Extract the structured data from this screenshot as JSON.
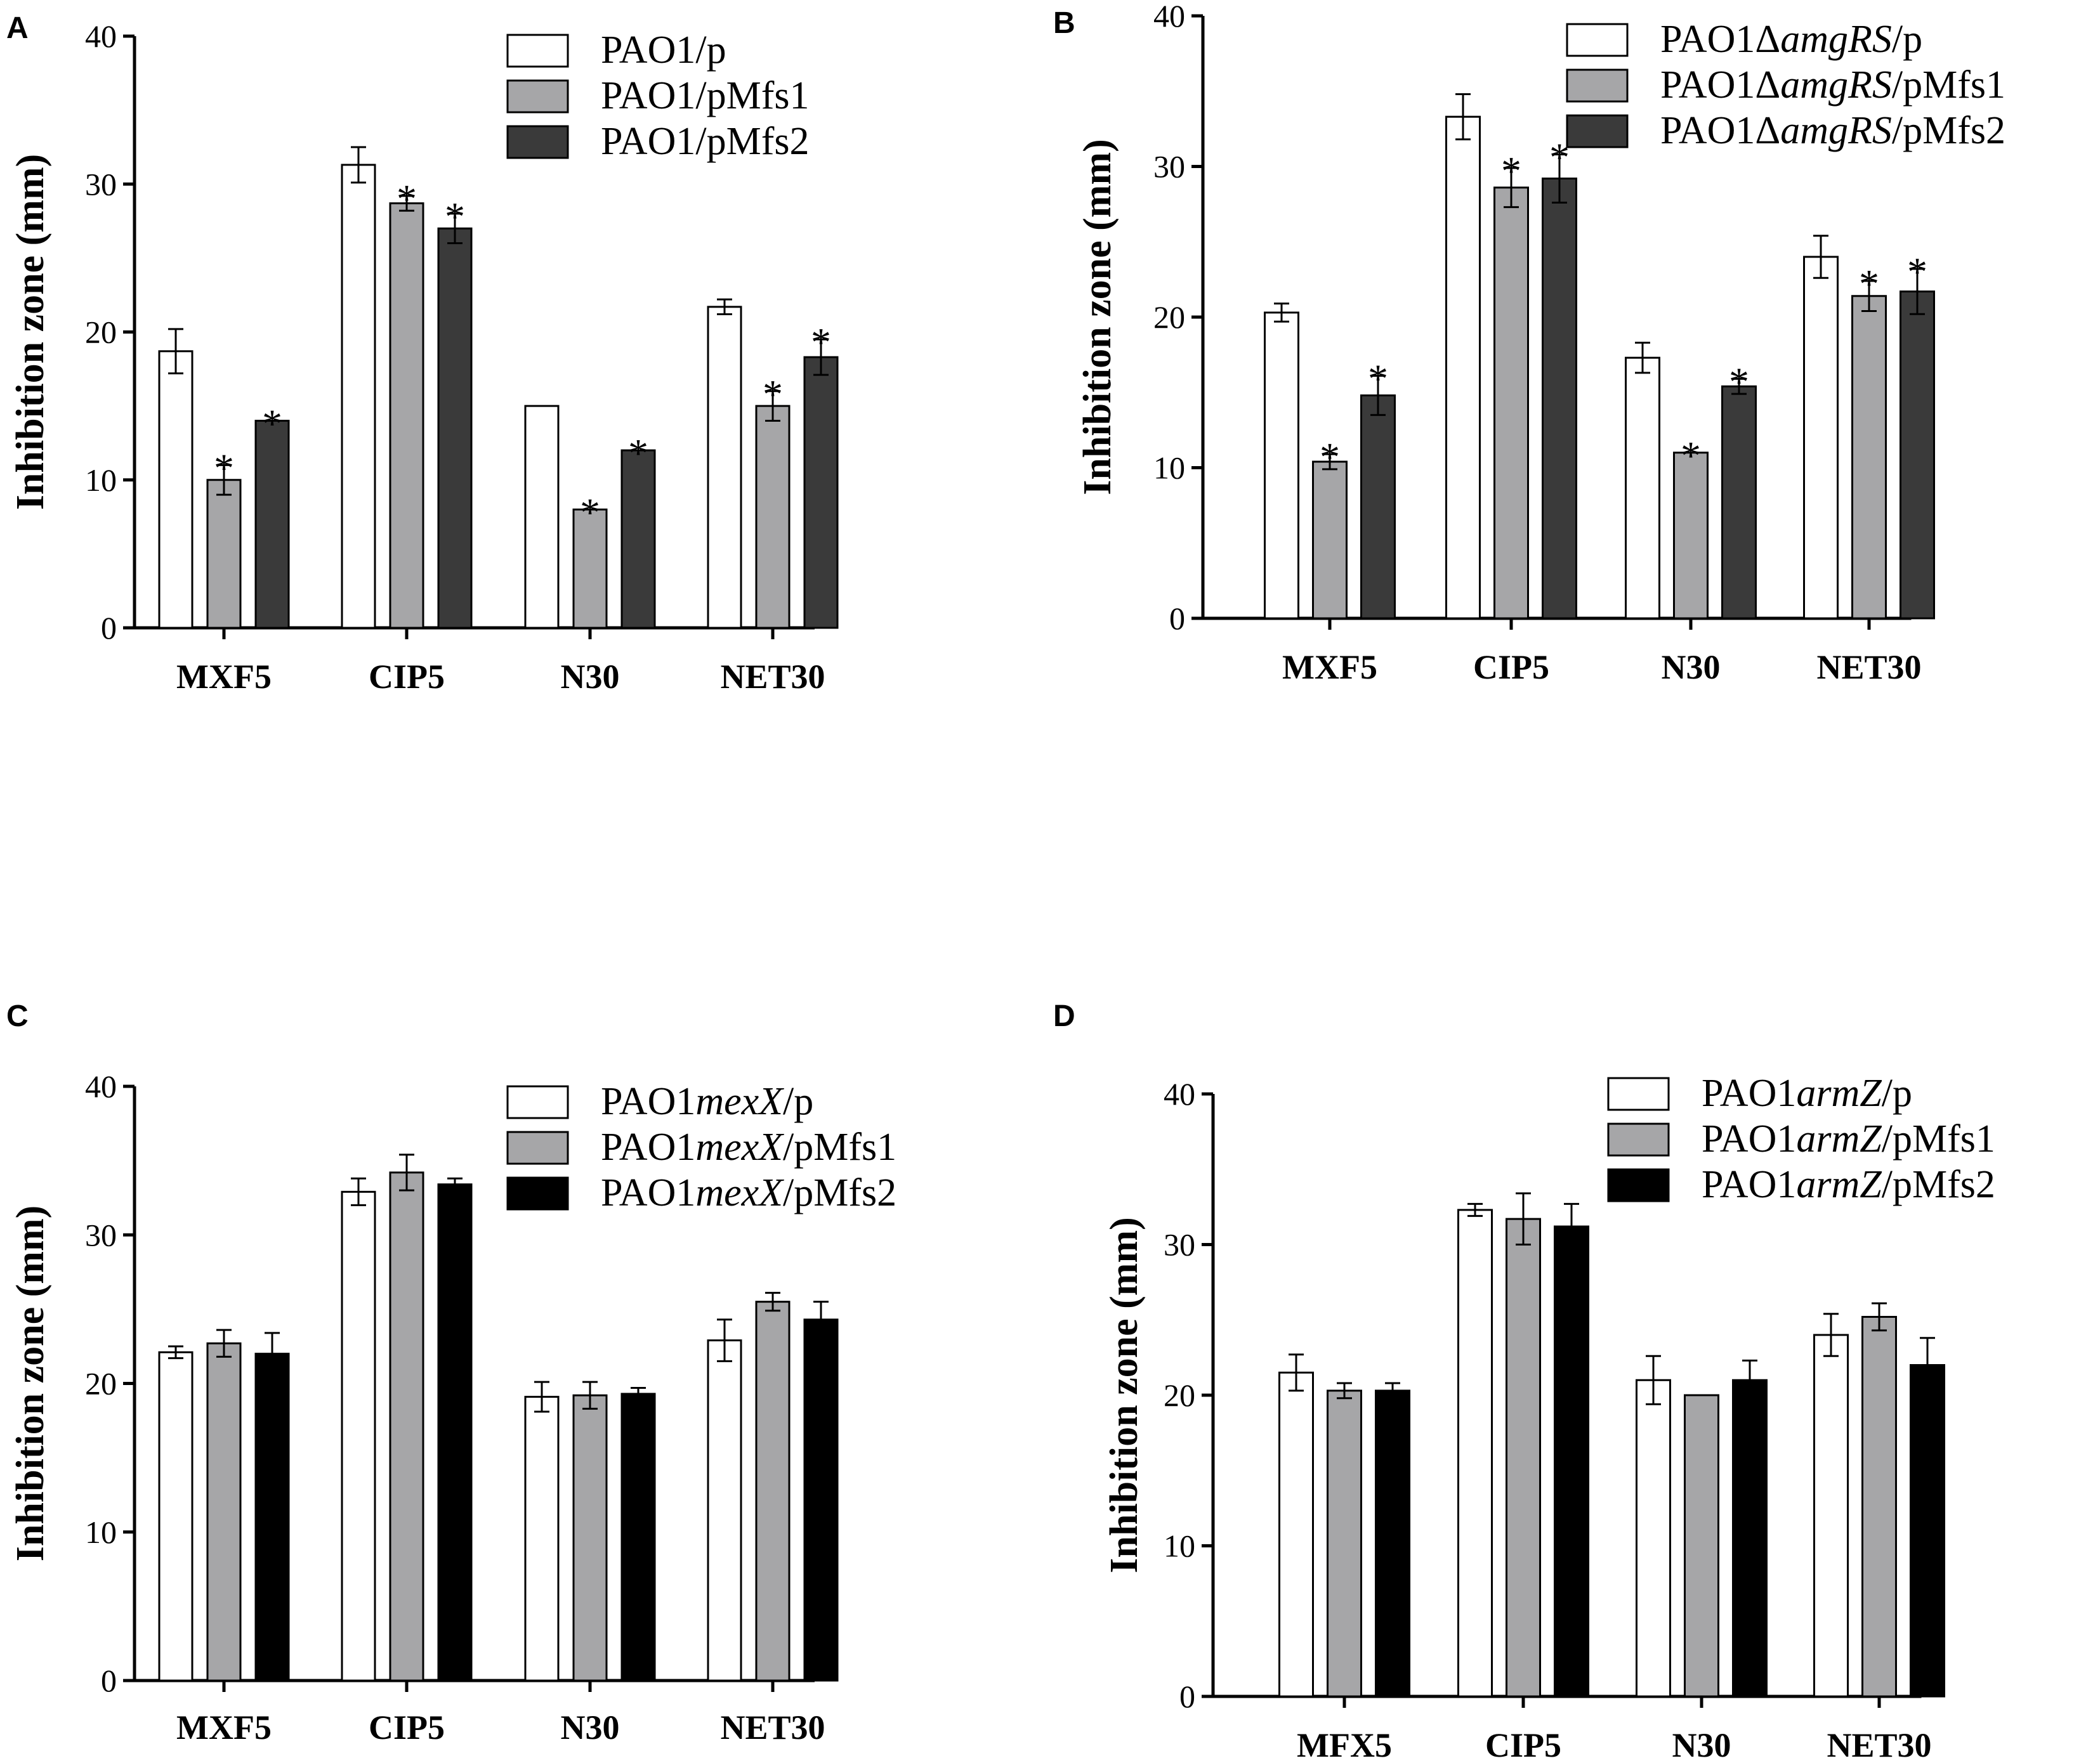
{
  "colors": {
    "white_bar": "#ffffff",
    "gray_bar": "#a6a6a8",
    "dark_bar": "#3a3a3a",
    "black_bar": "#000000",
    "stroke": "#000000"
  },
  "chart_data": [
    {
      "panel": "A",
      "type": "bar",
      "ylabel": "Inhibition zone (mm)",
      "ylim": [
        0,
        40
      ],
      "yticks": [
        0,
        10,
        20,
        30,
        40
      ],
      "categories": [
        "MXF5",
        "CIP5",
        "N30",
        "NET30"
      ],
      "series": [
        {
          "name": "PAO1/p",
          "legend": [
            "PAO1/p"
          ],
          "fill": "white",
          "values": [
            18.7,
            31.3,
            15.0,
            21.7
          ],
          "errors": [
            1.5,
            1.2,
            0,
            0.5
          ],
          "stars": [
            false,
            false,
            false,
            false
          ]
        },
        {
          "name": "PAO1/pMfs1",
          "legend": [
            "PAO1/pMfs1"
          ],
          "fill": "gray",
          "values": [
            10.0,
            28.7,
            8.0,
            15.0
          ],
          "errors": [
            1.0,
            0.5,
            0,
            1.0
          ],
          "stars": [
            true,
            true,
            true,
            true
          ]
        },
        {
          "name": "PAO1/pMfs2",
          "legend": [
            "PAO1/pMfs2"
          ],
          "fill": "dark",
          "values": [
            14.0,
            27.0,
            12.0,
            18.3
          ],
          "errors": [
            0,
            1.0,
            0,
            1.2
          ],
          "stars": [
            true,
            true,
            true,
            true
          ]
        }
      ]
    },
    {
      "panel": "B",
      "type": "bar",
      "ylabel": "Inhibition zone (mm)",
      "ylim": [
        0,
        40
      ],
      "yticks": [
        0,
        10,
        20,
        30,
        40
      ],
      "categories": [
        "MXF5",
        "CIP5",
        "N30",
        "NET30"
      ],
      "series": [
        {
          "name": "PAO1ΔamgRS/p",
          "legend": [
            "PAO1Δ",
            "amgRS",
            "/p"
          ],
          "fill": "white",
          "values": [
            20.3,
            33.3,
            17.3,
            24.0
          ],
          "errors": [
            0.6,
            1.5,
            1.0,
            1.4
          ],
          "stars": [
            false,
            false,
            false,
            false
          ]
        },
        {
          "name": "PAO1ΔamgRS/pMfs1",
          "legend": [
            "PAO1Δ",
            "amgRS",
            "/pMfs1"
          ],
          "fill": "gray",
          "values": [
            10.4,
            28.6,
            11.0,
            21.4
          ],
          "errors": [
            0.5,
            1.3,
            0,
            1.0
          ],
          "stars": [
            true,
            true,
            true,
            true
          ]
        },
        {
          "name": "PAO1ΔamgRS/pMfs2",
          "legend": [
            "PAO1Δ",
            "amgRS",
            "/pMfs2"
          ],
          "fill": "dark",
          "values": [
            14.8,
            29.2,
            15.4,
            21.7
          ],
          "errors": [
            1.3,
            1.6,
            0.5,
            1.5
          ],
          "stars": [
            true,
            true,
            true,
            true
          ]
        }
      ]
    },
    {
      "panel": "C",
      "type": "bar",
      "ylabel": "Inhibition zone (mm)",
      "ylim": [
        0,
        40
      ],
      "yticks": [
        0,
        10,
        20,
        30,
        40
      ],
      "categories": [
        "MXF5",
        "CIP5",
        "N30",
        "NET30"
      ],
      "series": [
        {
          "name": "PAO1mexX/p",
          "legend": [
            "PAO1",
            "mexX",
            "/p"
          ],
          "fill": "white",
          "values": [
            22.1,
            32.9,
            19.1,
            22.9
          ],
          "errors": [
            0.4,
            0.9,
            1.0,
            1.4
          ],
          "stars": [
            false,
            false,
            false,
            false
          ]
        },
        {
          "name": "PAO1mexX/pMfs1",
          "legend": [
            "PAO1",
            "mexX",
            "/pMfs1"
          ],
          "fill": "gray",
          "values": [
            22.7,
            34.2,
            19.2,
            25.5
          ],
          "errors": [
            0.9,
            1.2,
            0.9,
            0.6
          ],
          "stars": [
            false,
            false,
            false,
            false
          ]
        },
        {
          "name": "PAO1mexX/pMfs2",
          "legend": [
            "PAO1",
            "mexX",
            "/pMfs2"
          ],
          "fill": "black",
          "values": [
            22.0,
            33.4,
            19.3,
            24.3
          ],
          "errors": [
            1.4,
            0.4,
            0.4,
            1.2
          ],
          "stars": [
            false,
            false,
            false,
            false
          ]
        }
      ]
    },
    {
      "panel": "D",
      "type": "bar",
      "ylabel": "Inhibition zone (mm)",
      "ylim": [
        0,
        40
      ],
      "yticks": [
        0,
        10,
        20,
        30,
        40
      ],
      "categories": [
        "MFX5",
        "CIP5",
        "N30",
        "NET30"
      ],
      "series": [
        {
          "name": "PAO1armZ/p",
          "legend": [
            "PAO1",
            "armZ",
            "/p"
          ],
          "fill": "white",
          "values": [
            21.5,
            32.3,
            21.0,
            24.0
          ],
          "errors": [
            1.2,
            0.4,
            1.6,
            1.4
          ],
          "stars": [
            false,
            false,
            false,
            false
          ]
        },
        {
          "name": "PAO1armZ/pMfs1",
          "legend": [
            "PAO1",
            "armZ",
            "/pMfs1"
          ],
          "fill": "gray",
          "values": [
            20.3,
            31.7,
            20.0,
            25.2
          ],
          "errors": [
            0.5,
            1.7,
            0,
            0.9
          ],
          "stars": [
            false,
            false,
            false,
            false
          ]
        },
        {
          "name": "PAO1armZ/pMfs2",
          "legend": [
            "PAO1",
            "armZ",
            "/pMfs2"
          ],
          "fill": "black",
          "values": [
            20.3,
            31.2,
            21.0,
            22.0
          ],
          "errors": [
            0.5,
            1.5,
            1.3,
            1.8
          ],
          "stars": [
            false,
            false,
            false,
            false
          ]
        }
      ]
    }
  ]
}
